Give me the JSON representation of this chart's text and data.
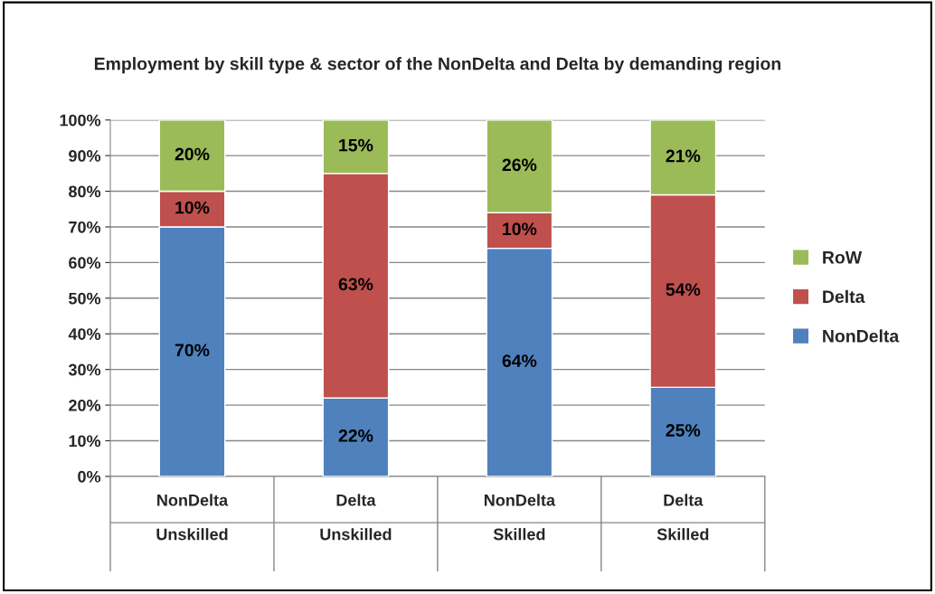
{
  "chart_data": {
    "type": "bar",
    "stacked": true,
    "title": "Employment by skill type & sector of the NonDelta and Delta by demanding region",
    "categories": [
      "NonDelta\nUnskilled",
      "Delta\nUnskilled",
      "NonDelta\nSkilled",
      "Delta\nSkilled"
    ],
    "series": [
      {
        "name": "NonDelta",
        "color": "#4f81bd",
        "values": [
          70,
          22,
          64,
          25
        ],
        "value_labels": [
          "70%",
          "22%",
          "64%",
          "25%"
        ]
      },
      {
        "name": "Delta",
        "color": "#c0504d",
        "values": [
          10,
          63,
          10,
          54
        ],
        "value_labels": [
          "10%",
          "63%",
          "10%",
          "54%"
        ]
      },
      {
        "name": "RoW",
        "color": "#9bbb59",
        "values": [
          20,
          15,
          26,
          21
        ],
        "value_labels": [
          "20%",
          "15%",
          "26%",
          "21%"
        ]
      }
    ],
    "ylim": [
      0,
      100
    ],
    "yticks": [
      {
        "value": 0,
        "label": "0%"
      },
      {
        "value": 10,
        "label": "10%"
      },
      {
        "value": 20,
        "label": "20%"
      },
      {
        "value": 30,
        "label": "30%"
      },
      {
        "value": 40,
        "label": "40%"
      },
      {
        "value": 50,
        "label": "50%"
      },
      {
        "value": 60,
        "label": "60%"
      },
      {
        "value": 70,
        "label": "70%"
      },
      {
        "value": 80,
        "label": "80%"
      },
      {
        "value": 90,
        "label": "90%"
      },
      {
        "value": 100,
        "label": "100%"
      }
    ],
    "grid": "y",
    "legend": "right"
  }
}
